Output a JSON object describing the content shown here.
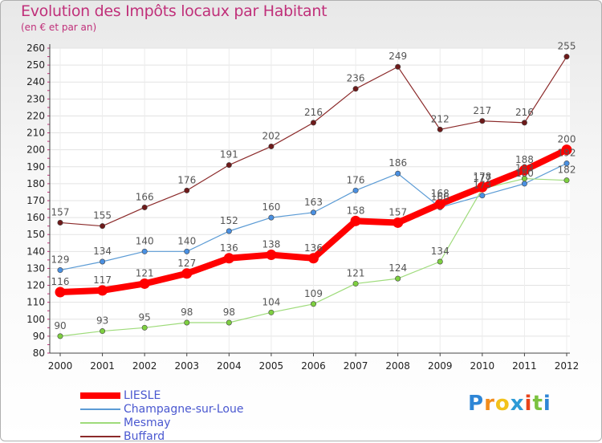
{
  "header": {
    "title": "Evolution des Impôts locaux par Habitant",
    "subtitle": "(en € et par an)"
  },
  "brand": {
    "letters": [
      "P",
      "r",
      "o",
      "x",
      "i",
      "t",
      "i"
    ],
    "colors": [
      "#2e86d6",
      "#f28c1b",
      "#f2c21b",
      "#2e9bd6",
      "#e8431b",
      "#7cc23f",
      "#2e86d6"
    ]
  },
  "chart_data": {
    "type": "line",
    "categories": [
      "2000",
      "2001",
      "2002",
      "2003",
      "2004",
      "2005",
      "2006",
      "2007",
      "2008",
      "2009",
      "2010",
      "2011",
      "2012"
    ],
    "ylim": [
      80,
      260
    ],
    "yticks": [
      80,
      90,
      100,
      110,
      120,
      130,
      140,
      150,
      160,
      170,
      180,
      190,
      200,
      210,
      220,
      230,
      240,
      250,
      260
    ],
    "grid": true,
    "legend_position": "bottom-left",
    "series": [
      {
        "name": "LIESLE",
        "color": "#ff0000",
        "width": 8,
        "marker_fill": "#ff0000",
        "values": [
          116,
          117,
          121,
          127,
          136,
          138,
          136,
          158,
          157,
          168,
          178,
          188,
          200
        ],
        "labels": [
          "116",
          "117",
          "121",
          "127",
          "136",
          "138",
          "136",
          "158",
          "157",
          "168",
          "178",
          "188",
          "200"
        ]
      },
      {
        "name": "Champagne-sur-Loue",
        "color": "#5b9bd5",
        "width": 1.2,
        "marker_fill": "#4a90e2",
        "values": [
          129,
          134,
          140,
          140,
          152,
          160,
          163,
          176,
          186,
          166,
          173,
          180,
          192
        ],
        "labels": [
          "129",
          "134",
          "140",
          "140",
          "152",
          "160",
          "163",
          "176",
          "186",
          "166",
          "173",
          "180",
          "192"
        ]
      },
      {
        "name": "Mesmay",
        "color": "#9edb7a",
        "width": 1.2,
        "marker_fill": "#7ed040",
        "values": [
          90,
          93,
          95,
          98,
          98,
          104,
          109,
          121,
          124,
          134,
          177,
          183,
          182
        ],
        "labels": [
          "90",
          "93",
          "95",
          "98",
          "98",
          "104",
          "109",
          "121",
          "124",
          "134",
          "177",
          "183",
          "182"
        ]
      },
      {
        "name": "Buffard",
        "color": "#8b2a2a",
        "width": 1.2,
        "marker_fill": "#6e1a1a",
        "values": [
          157,
          155,
          166,
          176,
          191,
          202,
          216,
          236,
          249,
          212,
          217,
          216,
          255
        ],
        "labels": [
          "157",
          "155",
          "166",
          "176",
          "191",
          "202",
          "216",
          "236",
          "249",
          "212",
          "217",
          "216",
          "255"
        ]
      }
    ]
  }
}
